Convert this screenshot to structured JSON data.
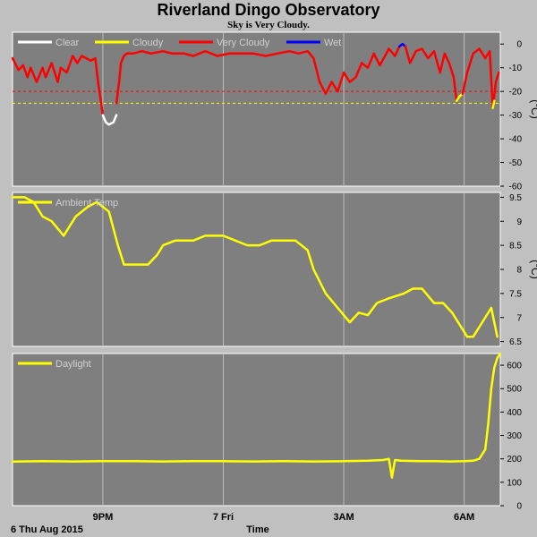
{
  "title": "Riverland Dingo Observatory",
  "subtitle": "Sky is Very Cloudy.",
  "x_axis": {
    "label": "Time",
    "date_label": "6 Thu Aug 2015",
    "ticks": [
      {
        "label": "9PM",
        "t": 3.0
      },
      {
        "label": "7 Fri",
        "t": 7.0
      },
      {
        "label": "3AM",
        "t": 11.0
      },
      {
        "label": "6AM",
        "t": 15.0
      }
    ],
    "range": [
      0,
      16.2
    ]
  },
  "colors": {
    "plot_bg": "#7f7f7f",
    "clear": "#ffffff",
    "cloudy": "#ffff00",
    "very_cloudy": "#ff0000",
    "wet": "#0000ff",
    "temp": "#ffff00",
    "daylight": "#ffff00"
  },
  "chart_data": [
    {
      "type": "line",
      "name": "sky-condition",
      "ylabel": "(°C)",
      "ylim": [
        -60,
        5
      ],
      "yticks": [
        0,
        -10,
        -20,
        -30,
        -40,
        -50,
        -60
      ],
      "legend": [
        "Clear",
        "Cloudy",
        "Very Cloudy",
        "Wet"
      ],
      "thresholds": [
        {
          "y": -20,
          "color": "#ff0000"
        },
        {
          "y": -25,
          "color": "#ffff00"
        }
      ],
      "series": [
        {
          "name": "Very Cloudy",
          "color": "#ff0000",
          "x": [
            0,
            0.2,
            0.35,
            0.5,
            0.6,
            0.8,
            1.0,
            1.1,
            1.3,
            1.5,
            1.6,
            1.8,
            2.0,
            2.15,
            2.3,
            2.45,
            2.6,
            2.75,
            2.85
          ],
          "y": [
            -6,
            -11,
            -9,
            -14,
            -10,
            -16,
            -10,
            -14,
            -8,
            -16,
            -10,
            -12,
            -5,
            -8,
            -5,
            -6,
            -7,
            -6,
            -17
          ]
        },
        {
          "name": "Very Cloudy",
          "color": "#ff0000",
          "x": [
            2.85,
            3.0
          ],
          "y": [
            -17,
            -30
          ]
        },
        {
          "name": "Clear",
          "color": "#ffffff",
          "x": [
            3.0,
            3.1,
            3.2,
            3.35,
            3.45
          ],
          "y": [
            -30,
            -33,
            -34,
            -33,
            -30
          ]
        },
        {
          "name": "Very Cloudy",
          "color": "#ff0000",
          "x": [
            3.45,
            3.55,
            3.6,
            3.7,
            3.8,
            4.0,
            4.3,
            4.6,
            5.0,
            5.3,
            5.7,
            6.0,
            6.4,
            6.8,
            7.2,
            7.6,
            8.0,
            8.4,
            8.8,
            9.2,
            9.5,
            9.8,
            10.0,
            10.2,
            10.4,
            10.6,
            10.8,
            11.0,
            11.2,
            11.4,
            11.6,
            11.8,
            12.0,
            12.2,
            12.5,
            12.7,
            12.85
          ],
          "y": [
            -25,
            -15,
            -8,
            -5,
            -4,
            -4,
            -3,
            -4,
            -3,
            -4,
            -4,
            -5,
            -3,
            -5,
            -4,
            -4,
            -4,
            -5,
            -4,
            -3,
            -4,
            -3,
            -6,
            -16,
            -21,
            -16,
            -20,
            -12,
            -16,
            -14,
            -8,
            -10,
            -4,
            -9,
            -2,
            -5,
            -1
          ]
        },
        {
          "name": "Wet",
          "color": "#0000ff",
          "x": [
            12.85,
            12.95,
            13.05
          ],
          "y": [
            -1,
            0,
            -1
          ]
        },
        {
          "name": "Very Cloudy",
          "color": "#ff0000",
          "x": [
            13.05,
            13.2,
            13.4,
            13.6,
            13.8,
            14.0,
            14.2,
            14.35,
            14.5,
            14.65,
            14.75
          ],
          "y": [
            -1,
            -8,
            -3,
            -2,
            -6,
            -3,
            -12,
            -4,
            -8,
            -14,
            -24
          ]
        },
        {
          "name": "Cloudy",
          "color": "#ffff00",
          "x": [
            14.75,
            14.85,
            14.95
          ],
          "y": [
            -24,
            -22,
            -21
          ]
        },
        {
          "name": "Very Cloudy",
          "color": "#ff0000",
          "x": [
            14.95,
            15.1,
            15.3,
            15.5,
            15.7,
            15.85,
            15.95,
            16.05,
            16.15
          ],
          "y": [
            -21,
            -12,
            -4,
            -2,
            -6,
            -3,
            -27,
            -16,
            -12
          ]
        },
        {
          "name": "Cloudy",
          "color": "#ffff00",
          "x": [
            15.95,
            16.0
          ],
          "y": [
            -27,
            -24
          ]
        }
      ]
    },
    {
      "type": "line",
      "name": "ambient-temperature",
      "ylabel": "(°C)",
      "ylim": [
        6.4,
        9.6
      ],
      "yticks": [
        9.5,
        9.0,
        8.5,
        8.0,
        7.5,
        7.0,
        6.5
      ],
      "legend": [
        "Ambient Temp"
      ],
      "series": [
        {
          "name": "Ambient Temp",
          "color": "#ffff00",
          "x": [
            0,
            0.4,
            0.7,
            1.0,
            1.3,
            1.7,
            1.9,
            2.1,
            2.5,
            2.8,
            3.0,
            3.2,
            3.5,
            3.7,
            4.0,
            4.5,
            4.8,
            5.0,
            5.4,
            5.7,
            6.0,
            6.4,
            7.0,
            7.4,
            7.8,
            8.2,
            8.6,
            9.0,
            9.4,
            9.8,
            10.0,
            10.4,
            10.8,
            11.2,
            11.5,
            11.8,
            12.1,
            12.5,
            13.0,
            13.3,
            13.6,
            14.0,
            14.3,
            14.6,
            14.9,
            15.1,
            15.3,
            15.6,
            15.9,
            16.1
          ],
          "y": [
            9.5,
            9.5,
            9.4,
            9.1,
            9.0,
            8.7,
            8.9,
            9.1,
            9.3,
            9.4,
            9.3,
            9.2,
            8.5,
            8.1,
            8.1,
            8.1,
            8.3,
            8.5,
            8.6,
            8.6,
            8.6,
            8.7,
            8.7,
            8.6,
            8.5,
            8.5,
            8.6,
            8.6,
            8.6,
            8.4,
            8.0,
            7.5,
            7.2,
            6.9,
            7.1,
            7.05,
            7.3,
            7.4,
            7.5,
            7.6,
            7.6,
            7.3,
            7.3,
            7.1,
            6.8,
            6.6,
            6.6,
            6.9,
            7.2,
            6.6
          ]
        }
      ]
    },
    {
      "type": "line",
      "name": "daylight",
      "ylabel": "",
      "ylim": [
        0,
        650
      ],
      "yticks": [
        600,
        500,
        400,
        300,
        200,
        100,
        0
      ],
      "legend": [
        "Daylight"
      ],
      "series": [
        {
          "name": "Daylight",
          "color": "#ffff00",
          "x": [
            0,
            1.0,
            2.0,
            3.0,
            4.0,
            5.0,
            6.0,
            7.0,
            8.0,
            9.0,
            10.0,
            11.0,
            11.8,
            12.3,
            12.5,
            12.6,
            12.7,
            12.9,
            13.5,
            14.0,
            14.5,
            15.0,
            15.3,
            15.5,
            15.7,
            15.8,
            15.9,
            16.0,
            16.1,
            16.2
          ],
          "y": [
            188,
            190,
            189,
            190,
            190,
            189,
            190,
            190,
            189,
            190,
            189,
            190,
            192,
            195,
            200,
            120,
            195,
            192,
            190,
            190,
            189,
            190,
            192,
            200,
            240,
            350,
            500,
            590,
            630,
            650
          ]
        }
      ]
    }
  ]
}
